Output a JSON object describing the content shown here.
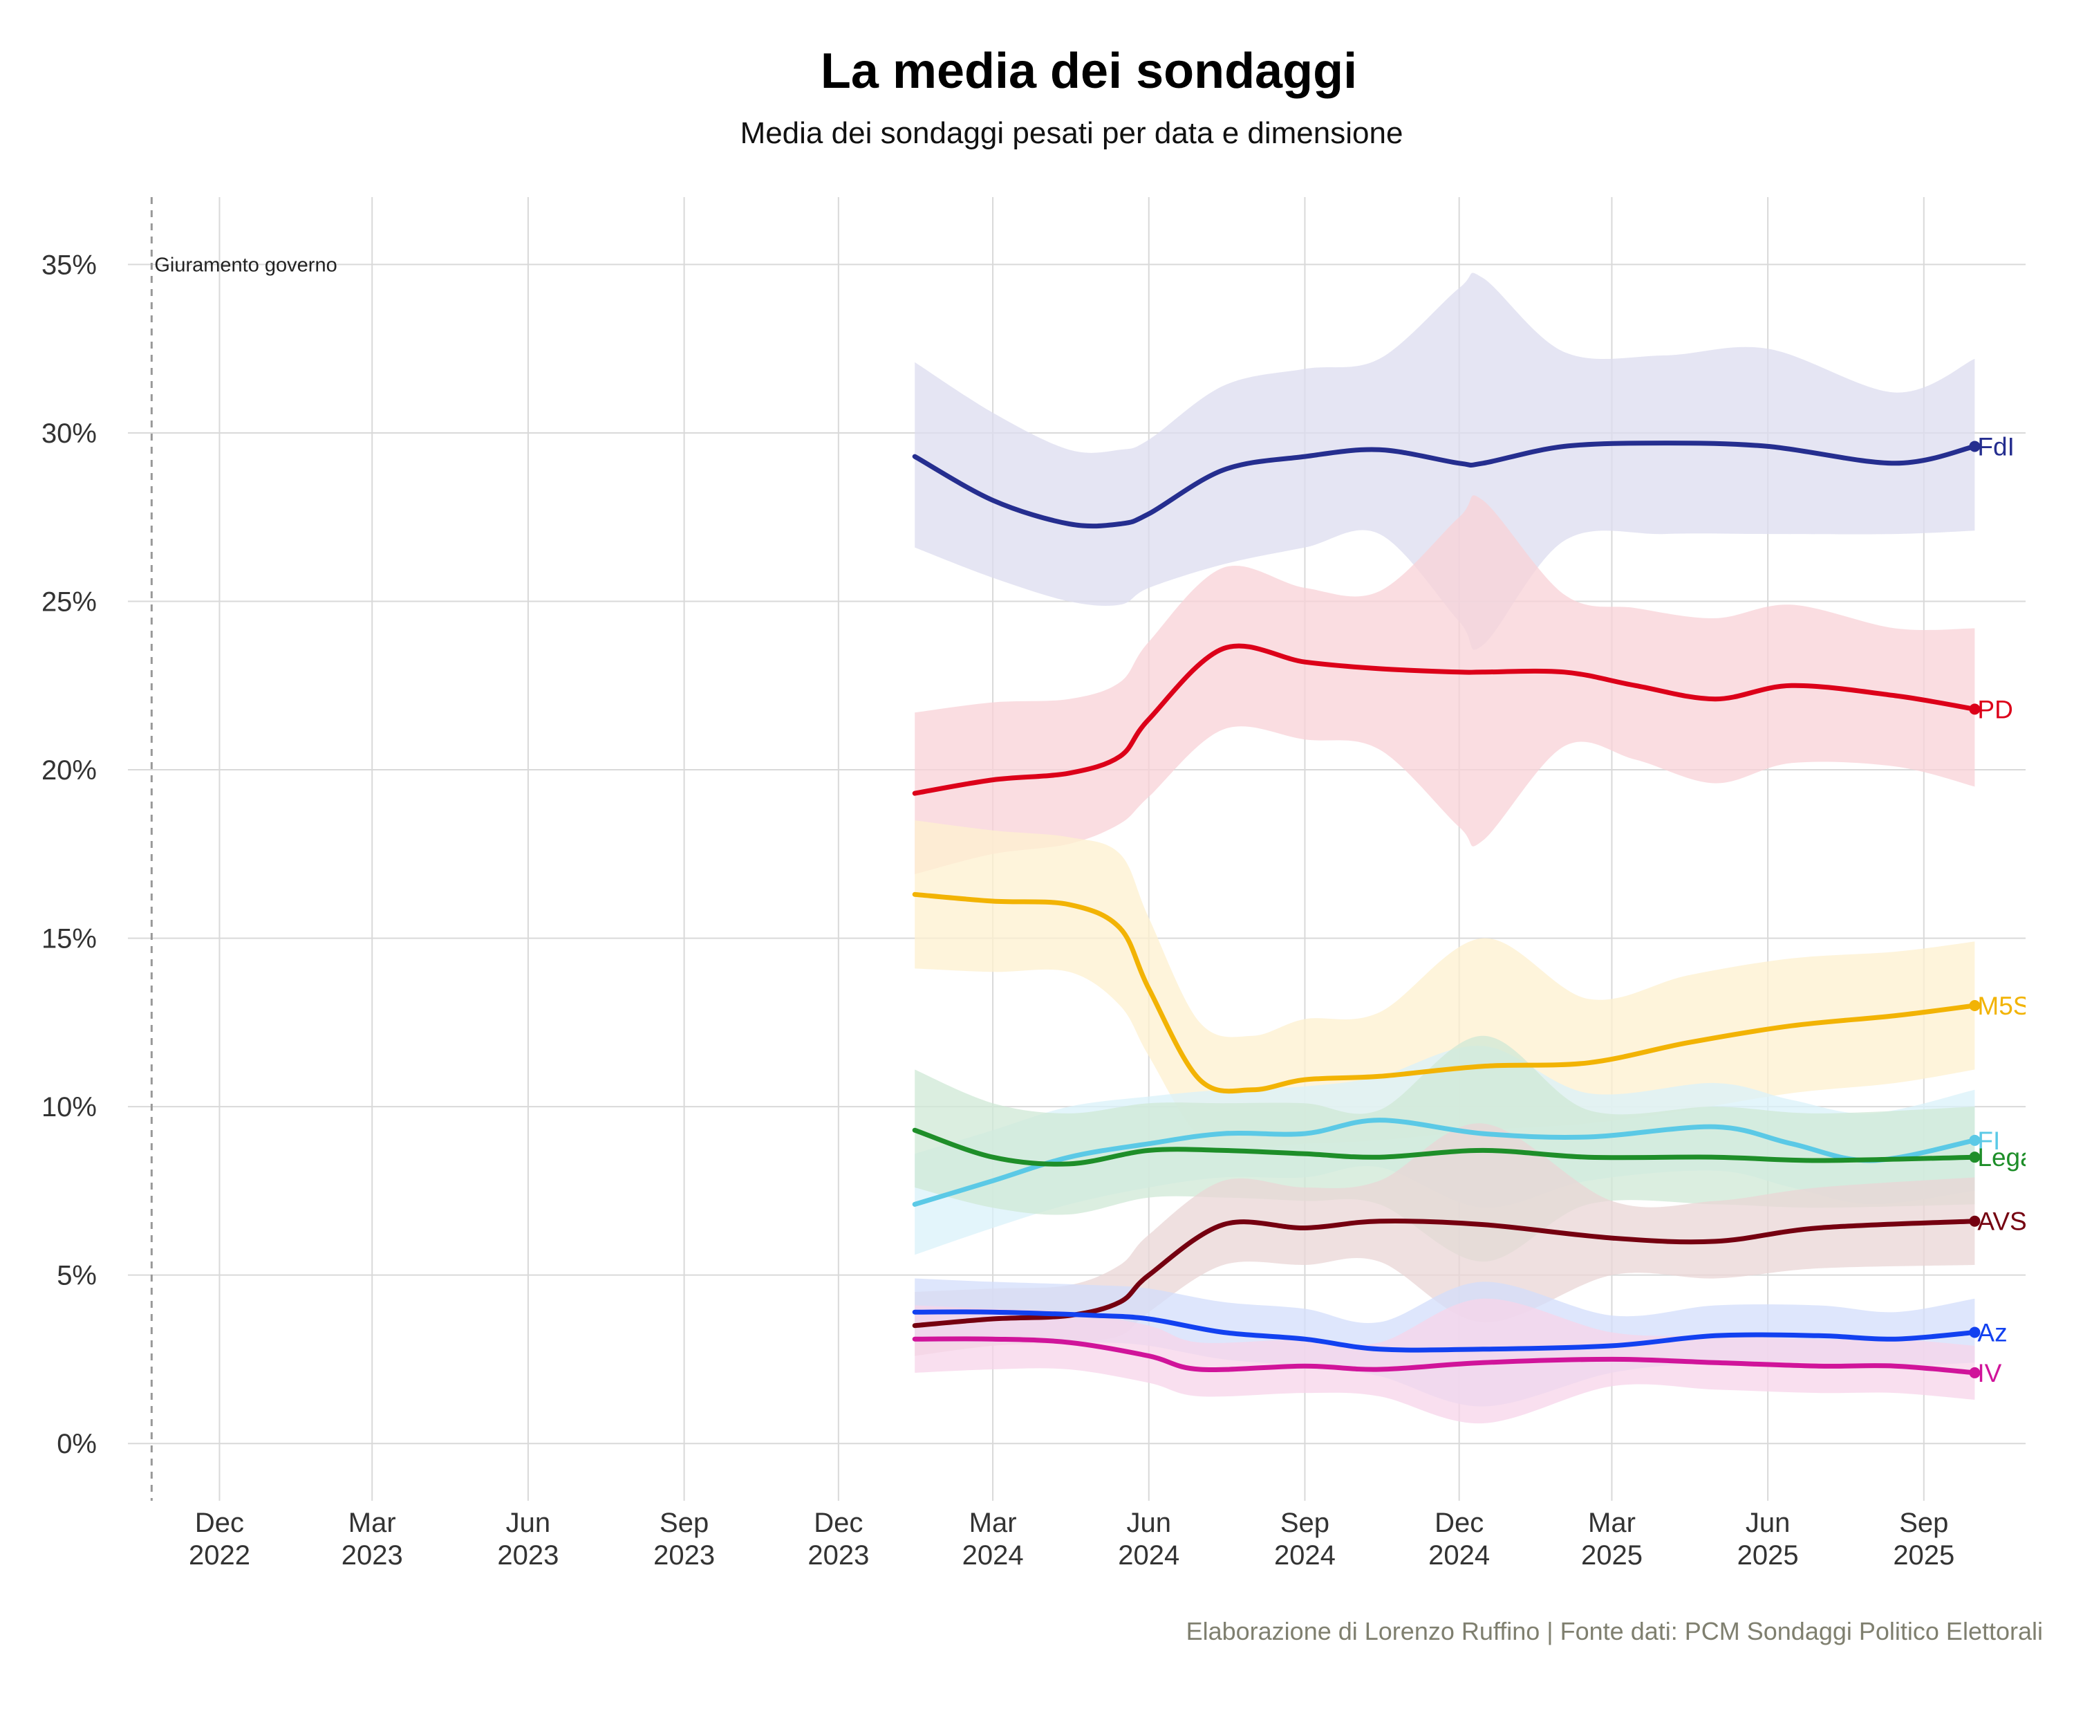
{
  "title": "La media dei sondaggi",
  "subtitle": "Media dei sondaggi pesati per data e dimensione",
  "caption": "Elaborazione di Lorenzo Ruffino | Fonte dati: PCM Sondaggi Politico Elettorali",
  "chart_data": {
    "type": "line",
    "title": "La media dei sondaggi",
    "subtitle": "Media dei sondaggi pesati per data e dimensione",
    "xlabel": "",
    "ylabel": "",
    "xlim": [
      "2022-10-08",
      "2025-10-31"
    ],
    "ylim": [
      -1.7,
      37
    ],
    "y_ticks": [
      0,
      5,
      10,
      15,
      20,
      25,
      30,
      35
    ],
    "y_tick_format": "%",
    "x_ticks": [
      {
        "date": "2022-12-01",
        "month": "Dec",
        "year": "2022"
      },
      {
        "date": "2023-03-01",
        "month": "Mar",
        "year": "2023"
      },
      {
        "date": "2023-06-01",
        "month": "Jun",
        "year": "2023"
      },
      {
        "date": "2023-09-01",
        "month": "Sep",
        "year": "2023"
      },
      {
        "date": "2023-12-01",
        "month": "Dec",
        "year": "2023"
      },
      {
        "date": "2024-03-01",
        "month": "Mar",
        "year": "2024"
      },
      {
        "date": "2024-06-01",
        "month": "Jun",
        "year": "2024"
      },
      {
        "date": "2024-09-01",
        "month": "Sep",
        "year": "2024"
      },
      {
        "date": "2024-12-01",
        "month": "Dec",
        "year": "2024"
      },
      {
        "date": "2025-03-01",
        "month": "Mar",
        "year": "2025"
      },
      {
        "date": "2025-06-01",
        "month": "Jun",
        "year": "2025"
      },
      {
        "date": "2025-09-01",
        "month": "Sep",
        "year": "2025"
      }
    ],
    "grid": true,
    "annotation": {
      "date": "2022-10-22",
      "text": "Giuramento governo",
      "style": "dashed-vertical-line"
    },
    "series": [
      {
        "name": "FdI",
        "color": "#252e8f",
        "band_color": "#dcdcef",
        "points": [
          {
            "x": "2024-01-15",
            "y": 29.3,
            "lo": 26.6,
            "hi": 32.1
          },
          {
            "x": "2024-03-01",
            "y": 28.0,
            "lo": 25.7,
            "hi": 30.6
          },
          {
            "x": "2024-04-15",
            "y": 27.3,
            "lo": 25.0,
            "hi": 29.5
          },
          {
            "x": "2024-05-15",
            "y": 27.3,
            "lo": 24.9,
            "hi": 29.5
          },
          {
            "x": "2024-06-01",
            "y": 27.6,
            "lo": 25.4,
            "hi": 29.8
          },
          {
            "x": "2024-07-15",
            "y": 28.9,
            "lo": 26.1,
            "hi": 31.4
          },
          {
            "x": "2024-09-01",
            "y": 29.3,
            "lo": 26.6,
            "hi": 31.9
          },
          {
            "x": "2024-10-15",
            "y": 29.5,
            "lo": 27.0,
            "hi": 32.2
          },
          {
            "x": "2024-12-01",
            "y": 29.1,
            "lo": 24.4,
            "hi": 34.3
          },
          {
            "x": "2024-12-15",
            "y": 29.1,
            "lo": 23.7,
            "hi": 34.6
          },
          {
            "x": "2025-02-01",
            "y": 29.6,
            "lo": 26.8,
            "hi": 32.4
          },
          {
            "x": "2025-04-01",
            "y": 29.7,
            "lo": 27.0,
            "hi": 32.3
          },
          {
            "x": "2025-06-01",
            "y": 29.6,
            "lo": 27.0,
            "hi": 32.5
          },
          {
            "x": "2025-08-15",
            "y": 29.1,
            "lo": 27.0,
            "hi": 31.2
          },
          {
            "x": "2025-10-01",
            "y": 29.6,
            "lo": 27.1,
            "hi": 32.2
          }
        ]
      },
      {
        "name": "PD",
        "color": "#dc0019",
        "band_color": "#f8d2d7",
        "points": [
          {
            "x": "2024-01-15",
            "y": 19.3,
            "lo": 16.9,
            "hi": 21.7
          },
          {
            "x": "2024-03-01",
            "y": 19.7,
            "lo": 17.5,
            "hi": 22.0
          },
          {
            "x": "2024-04-15",
            "y": 19.9,
            "lo": 17.8,
            "hi": 22.1
          },
          {
            "x": "2024-05-15",
            "y": 20.4,
            "lo": 18.4,
            "hi": 22.6
          },
          {
            "x": "2024-06-01",
            "y": 21.5,
            "lo": 19.2,
            "hi": 23.8
          },
          {
            "x": "2024-07-15",
            "y": 23.6,
            "lo": 21.2,
            "hi": 26.0
          },
          {
            "x": "2024-09-01",
            "y": 23.2,
            "lo": 20.9,
            "hi": 25.4
          },
          {
            "x": "2024-10-15",
            "y": 23.0,
            "lo": 20.6,
            "hi": 25.3
          },
          {
            "x": "2024-12-01",
            "y": 22.9,
            "lo": 18.3,
            "hi": 27.5
          },
          {
            "x": "2024-12-15",
            "y": 22.9,
            "lo": 17.9,
            "hi": 28.0
          },
          {
            "x": "2025-02-01",
            "y": 22.9,
            "lo": 20.7,
            "hi": 25.2
          },
          {
            "x": "2025-03-15",
            "y": 22.5,
            "lo": 20.3,
            "hi": 24.8
          },
          {
            "x": "2025-05-01",
            "y": 22.1,
            "lo": 19.6,
            "hi": 24.5
          },
          {
            "x": "2025-06-15",
            "y": 22.5,
            "lo": 20.2,
            "hi": 24.9
          },
          {
            "x": "2025-08-15",
            "y": 22.2,
            "lo": 20.1,
            "hi": 24.2
          },
          {
            "x": "2025-10-01",
            "y": 21.8,
            "lo": 19.5,
            "hi": 24.2
          }
        ]
      },
      {
        "name": "M5S",
        "color": "#f2b304",
        "band_color": "#fdf0cf",
        "points": [
          {
            "x": "2024-01-15",
            "y": 16.3,
            "lo": 14.1,
            "hi": 18.5
          },
          {
            "x": "2024-03-01",
            "y": 16.1,
            "lo": 14.0,
            "hi": 18.2
          },
          {
            "x": "2024-04-15",
            "y": 16.0,
            "lo": 14.0,
            "hi": 18.0
          },
          {
            "x": "2024-05-15",
            "y": 15.3,
            "lo": 13.0,
            "hi": 17.5
          },
          {
            "x": "2024-06-01",
            "y": 13.5,
            "lo": 11.5,
            "hi": 15.6
          },
          {
            "x": "2024-07-01",
            "y": 10.8,
            "lo": 9.1,
            "hi": 12.5
          },
          {
            "x": "2024-08-01",
            "y": 10.5,
            "lo": 8.8,
            "hi": 12.1
          },
          {
            "x": "2024-09-01",
            "y": 10.8,
            "lo": 8.9,
            "hi": 12.6
          },
          {
            "x": "2024-10-15",
            "y": 10.9,
            "lo": 9.0,
            "hi": 12.8
          },
          {
            "x": "2024-12-15",
            "y": 11.2,
            "lo": 9.3,
            "hi": 15.0
          },
          {
            "x": "2025-02-15",
            "y": 11.3,
            "lo": 9.5,
            "hi": 13.2
          },
          {
            "x": "2025-04-15",
            "y": 11.9,
            "lo": 9.9,
            "hi": 13.9
          },
          {
            "x": "2025-06-15",
            "y": 12.4,
            "lo": 10.4,
            "hi": 14.4
          },
          {
            "x": "2025-08-15",
            "y": 12.7,
            "lo": 10.7,
            "hi": 14.6
          },
          {
            "x": "2025-10-01",
            "y": 13.0,
            "lo": 11.1,
            "hi": 14.9
          }
        ]
      },
      {
        "name": "FI",
        "color": "#5bc9e6",
        "band_color": "#d9f1f9",
        "points": [
          {
            "x": "2024-01-15",
            "y": 7.1,
            "lo": 5.6,
            "hi": 8.6
          },
          {
            "x": "2024-03-01",
            "y": 7.8,
            "lo": 6.4,
            "hi": 9.3
          },
          {
            "x": "2024-04-15",
            "y": 8.5,
            "lo": 7.1,
            "hi": 10.0
          },
          {
            "x": "2024-06-01",
            "y": 8.9,
            "lo": 7.6,
            "hi": 10.3
          },
          {
            "x": "2024-07-15",
            "y": 9.2,
            "lo": 7.9,
            "hi": 10.5
          },
          {
            "x": "2024-09-01",
            "y": 9.2,
            "lo": 7.9,
            "hi": 10.6
          },
          {
            "x": "2024-10-15",
            "y": 9.6,
            "lo": 8.2,
            "hi": 10.9
          },
          {
            "x": "2024-12-15",
            "y": 9.2,
            "lo": 7.0,
            "hi": 11.8
          },
          {
            "x": "2025-02-15",
            "y": 9.1,
            "lo": 7.8,
            "hi": 10.4
          },
          {
            "x": "2025-05-01",
            "y": 9.4,
            "lo": 8.1,
            "hi": 10.7
          },
          {
            "x": "2025-06-15",
            "y": 8.9,
            "lo": 7.6,
            "hi": 10.2
          },
          {
            "x": "2025-08-01",
            "y": 8.4,
            "lo": 7.1,
            "hi": 9.8
          },
          {
            "x": "2025-10-01",
            "y": 9.0,
            "lo": 7.5,
            "hi": 10.5
          }
        ]
      },
      {
        "name": "Lega",
        "color": "#1e8e29",
        "band_color": "#cfe8d6",
        "points": [
          {
            "x": "2024-01-15",
            "y": 9.3,
            "lo": 7.6,
            "hi": 11.1
          },
          {
            "x": "2024-03-01",
            "y": 8.5,
            "lo": 7.0,
            "hi": 10.1
          },
          {
            "x": "2024-04-15",
            "y": 8.3,
            "lo": 6.8,
            "hi": 9.8
          },
          {
            "x": "2024-06-01",
            "y": 8.7,
            "lo": 7.3,
            "hi": 10.1
          },
          {
            "x": "2024-07-15",
            "y": 8.7,
            "lo": 7.3,
            "hi": 10.1
          },
          {
            "x": "2024-09-01",
            "y": 8.6,
            "lo": 7.2,
            "hi": 10.1
          },
          {
            "x": "2024-10-15",
            "y": 8.5,
            "lo": 7.1,
            "hi": 9.9
          },
          {
            "x": "2024-12-15",
            "y": 8.7,
            "lo": 5.4,
            "hi": 12.1
          },
          {
            "x": "2025-02-15",
            "y": 8.5,
            "lo": 7.1,
            "hi": 9.9
          },
          {
            "x": "2025-05-01",
            "y": 8.5,
            "lo": 7.1,
            "hi": 10.0
          },
          {
            "x": "2025-07-01",
            "y": 8.4,
            "lo": 7.0,
            "hi": 9.8
          },
          {
            "x": "2025-10-01",
            "y": 8.5,
            "lo": 7.1,
            "hi": 10.0
          }
        ]
      },
      {
        "name": "AVS",
        "color": "#750010",
        "band_color": "#ead6d6",
        "points": [
          {
            "x": "2024-01-15",
            "y": 3.5,
            "lo": 2.6,
            "hi": 4.5
          },
          {
            "x": "2024-03-01",
            "y": 3.7,
            "lo": 2.9,
            "hi": 4.6
          },
          {
            "x": "2024-04-15",
            "y": 3.8,
            "lo": 3.0,
            "hi": 4.7
          },
          {
            "x": "2024-05-15",
            "y": 4.2,
            "lo": 3.2,
            "hi": 5.3
          },
          {
            "x": "2024-06-01",
            "y": 5.0,
            "lo": 3.9,
            "hi": 6.2
          },
          {
            "x": "2024-07-15",
            "y": 6.5,
            "lo": 5.3,
            "hi": 7.8
          },
          {
            "x": "2024-09-01",
            "y": 6.4,
            "lo": 5.3,
            "hi": 7.6
          },
          {
            "x": "2024-10-15",
            "y": 6.6,
            "lo": 5.4,
            "hi": 7.8
          },
          {
            "x": "2024-12-15",
            "y": 6.5,
            "lo": 3.6,
            "hi": 9.5
          },
          {
            "x": "2025-03-01",
            "y": 6.1,
            "lo": 5.0,
            "hi": 7.2
          },
          {
            "x": "2025-05-01",
            "y": 6.0,
            "lo": 4.9,
            "hi": 7.2
          },
          {
            "x": "2025-07-01",
            "y": 6.4,
            "lo": 5.2,
            "hi": 7.6
          },
          {
            "x": "2025-10-01",
            "y": 6.6,
            "lo": 5.3,
            "hi": 7.9
          }
        ]
      },
      {
        "name": "Az",
        "color": "#1241f0",
        "band_color": "#d3ddfb",
        "points": [
          {
            "x": "2024-01-15",
            "y": 3.9,
            "lo": 3.0,
            "hi": 4.9
          },
          {
            "x": "2024-03-01",
            "y": 3.9,
            "lo": 3.0,
            "hi": 4.8
          },
          {
            "x": "2024-05-01",
            "y": 3.8,
            "lo": 3.0,
            "hi": 4.7
          },
          {
            "x": "2024-06-01",
            "y": 3.7,
            "lo": 2.9,
            "hi": 4.6
          },
          {
            "x": "2024-07-15",
            "y": 3.3,
            "lo": 2.5,
            "hi": 4.2
          },
          {
            "x": "2024-09-01",
            "y": 3.1,
            "lo": 2.3,
            "hi": 4.0
          },
          {
            "x": "2024-10-15",
            "y": 2.8,
            "lo": 2.0,
            "hi": 3.6
          },
          {
            "x": "2024-12-15",
            "y": 2.8,
            "lo": 1.1,
            "hi": 4.8
          },
          {
            "x": "2025-03-01",
            "y": 2.9,
            "lo": 2.1,
            "hi": 3.8
          },
          {
            "x": "2025-05-01",
            "y": 3.2,
            "lo": 2.4,
            "hi": 4.1
          },
          {
            "x": "2025-07-01",
            "y": 3.2,
            "lo": 2.4,
            "hi": 4.1
          },
          {
            "x": "2025-08-15",
            "y": 3.1,
            "lo": 2.3,
            "hi": 3.9
          },
          {
            "x": "2025-10-01",
            "y": 3.3,
            "lo": 2.4,
            "hi": 4.3
          }
        ]
      },
      {
        "name": "IV",
        "color": "#d0149a",
        "band_color": "#f7d4ea",
        "points": [
          {
            "x": "2024-01-15",
            "y": 3.1,
            "lo": 2.1,
            "hi": 4.1
          },
          {
            "x": "2024-03-01",
            "y": 3.1,
            "lo": 2.2,
            "hi": 4.0
          },
          {
            "x": "2024-04-15",
            "y": 3.0,
            "lo": 2.2,
            "hi": 3.9
          },
          {
            "x": "2024-06-01",
            "y": 2.6,
            "lo": 1.8,
            "hi": 3.5
          },
          {
            "x": "2024-07-01",
            "y": 2.2,
            "lo": 1.4,
            "hi": 3.0
          },
          {
            "x": "2024-09-01",
            "y": 2.3,
            "lo": 1.5,
            "hi": 3.1
          },
          {
            "x": "2024-10-15",
            "y": 2.2,
            "lo": 1.4,
            "hi": 3.0
          },
          {
            "x": "2024-12-15",
            "y": 2.4,
            "lo": 0.6,
            "hi": 4.3
          },
          {
            "x": "2025-03-01",
            "y": 2.5,
            "lo": 1.7,
            "hi": 3.3
          },
          {
            "x": "2025-05-01",
            "y": 2.4,
            "lo": 1.6,
            "hi": 3.2
          },
          {
            "x": "2025-07-01",
            "y": 2.3,
            "lo": 1.5,
            "hi": 3.1
          },
          {
            "x": "2025-08-15",
            "y": 2.3,
            "lo": 1.5,
            "hi": 3.1
          },
          {
            "x": "2025-10-01",
            "y": 2.1,
            "lo": 1.3,
            "hi": 2.9
          }
        ]
      }
    ]
  }
}
